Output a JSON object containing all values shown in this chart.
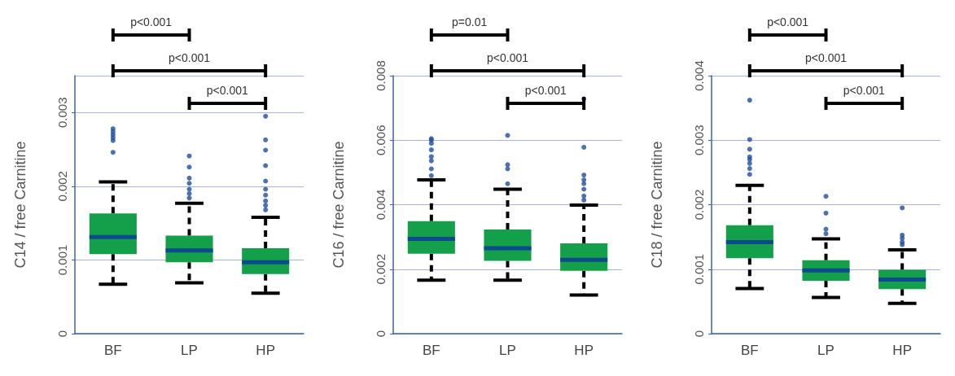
{
  "chart_data": [
    {
      "type": "box",
      "categories": [
        "BF",
        "LP",
        "HP"
      ],
      "ylabel": "C14 / free Carnitine",
      "ylim": [
        0,
        0.0035
      ],
      "yticks": [
        0,
        0.001,
        0.002,
        0.003
      ],
      "grid": "y",
      "annotations": [
        "p<0.001",
        "p<0.001",
        "p<0.001"
      ],
      "series": [
        {
          "color": "#14a04a",
          "boxes": [
            {
              "low": 0.00067,
              "q1": 0.00108,
              "median": 0.00131,
              "q3": 0.00163,
              "high": 0.00206,
              "outliers": [
                0.00278,
                0.00274,
                0.0027,
                0.00266,
                0.00262,
                0.00246
              ]
            },
            {
              "low": 0.00069,
              "q1": 0.00097,
              "median": 0.00113,
              "q3": 0.00133,
              "high": 0.00177,
              "outliers": [
                0.00241,
                0.00226,
                0.00211,
                0.00204,
                0.00196,
                0.0019,
                0.00184
              ]
            },
            {
              "low": 0.00055,
              "q1": 0.00081,
              "median": 0.00097,
              "q3": 0.00116,
              "high": 0.00158,
              "outliers": [
                0.00295,
                0.00263,
                0.00249,
                0.00228,
                0.00207,
                0.00196,
                0.00188,
                0.0018,
                0.00174,
                0.00168
              ]
            }
          ]
        }
      ]
    },
    {
      "type": "box",
      "categories": [
        "BF",
        "LP",
        "HP"
      ],
      "ylabel": "C16 / free Carnitine",
      "ylim": [
        0,
        0.008
      ],
      "yticks": [
        0,
        0.002,
        0.004,
        0.006,
        0.008
      ],
      "grid": "y",
      "annotations": [
        "p=0.01",
        "p<0.001",
        "p<0.001"
      ],
      "series": [
        {
          "color": "#14a04a",
          "boxes": [
            {
              "low": 0.00166,
              "q1": 0.00248,
              "median": 0.00294,
              "q3": 0.00349,
              "high": 0.00477,
              "outliers": [
                0.00605,
                0.006,
                0.0059,
                0.0057,
                0.00549,
                0.00536,
                0.00511,
                0.0049
              ]
            },
            {
              "low": 0.00166,
              "q1": 0.00226,
              "median": 0.00265,
              "q3": 0.00323,
              "high": 0.00448,
              "outliers": [
                0.00615,
                0.00524,
                0.00511,
                0.00465
              ]
            },
            {
              "low": 0.0012,
              "q1": 0.00195,
              "median": 0.00229,
              "q3": 0.0028,
              "high": 0.00399,
              "outliers": [
                0.00728,
                0.00578,
                0.00492,
                0.00477,
                0.00465,
                0.00448,
                0.00427,
                0.00414
              ]
            }
          ]
        }
      ]
    },
    {
      "type": "box",
      "categories": [
        "BF",
        "LP",
        "HP"
      ],
      "ylabel": "C18 / free Carnitine",
      "ylim": [
        0,
        0.004
      ],
      "yticks": [
        0,
        0.001,
        0.002,
        0.003,
        0.004
      ],
      "grid": "y",
      "annotations": [
        "p<0.001",
        "p<0.001",
        "p<0.001"
      ],
      "series": [
        {
          "color": "#14a04a",
          "boxes": [
            {
              "low": 0.0007,
              "q1": 0.00117,
              "median": 0.00142,
              "q3": 0.00168,
              "high": 0.0023,
              "outliers": [
                0.00362,
                0.00301,
                0.00286,
                0.00274,
                0.0027,
                0.00264,
                0.00256,
                0.00247
              ]
            },
            {
              "low": 0.00056,
              "q1": 0.00082,
              "median": 0.00098,
              "q3": 0.00114,
              "high": 0.00147,
              "outliers": [
                0.00213,
                0.00187,
                0.00162,
                0.00155
              ]
            },
            {
              "low": 0.00047,
              "q1": 0.00069,
              "median": 0.00084,
              "q3": 0.00099,
              "high": 0.0013,
              "outliers": [
                0.00195,
                0.00153,
                0.00148,
                0.00142,
                0.00138
              ]
            }
          ]
        }
      ]
    }
  ]
}
